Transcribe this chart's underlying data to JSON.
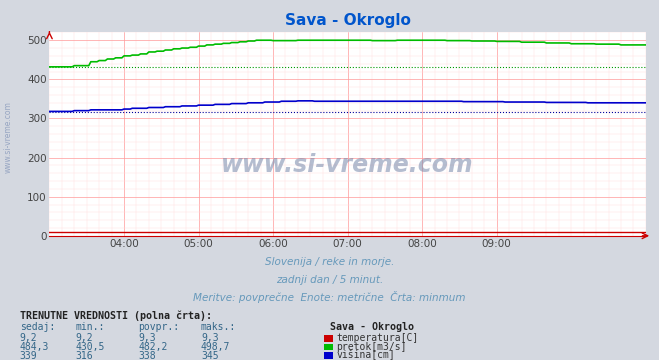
{
  "title": "Sava - Okroglo",
  "title_color": "#0055cc",
  "fig_bg_color": "#d4d8e0",
  "plot_bg_color": "#ffffff",
  "grid_major_color": "#ff9999",
  "grid_minor_color": "#ffdddd",
  "xlim": [
    0,
    288
  ],
  "ylim": [
    0,
    520
  ],
  "yticks": [
    0,
    100,
    200,
    300,
    400,
    500
  ],
  "xtick_labels": [
    "04:00",
    "05:00",
    "06:00",
    "07:00",
    "08:00",
    "09:00"
  ],
  "xtick_positions": [
    36,
    72,
    108,
    144,
    180,
    216
  ],
  "watermark": "www.si-vreme.com",
  "subtitle1": "Slovenija / reke in morje.",
  "subtitle2": "zadnji dan / 5 minut.",
  "subtitle3": "Meritve: povprečne  Enote: metrične  Črta: minmum",
  "subtitle_color": "#6699bb",
  "legend_title": "Sava - Okroglo",
  "legend_items": [
    {
      "label": "temperatura[C]",
      "color": "#cc0000"
    },
    {
      "label": "pretok[m3/s]",
      "color": "#00bb00"
    },
    {
      "label": "višina[cm]",
      "color": "#0000cc"
    }
  ],
  "table_header": "TRENUTNE VREDNOSTI (polna črta):",
  "table_cols": [
    "sedaj:",
    "min.:",
    "povpr.:",
    "maks.:"
  ],
  "table_rows": [
    [
      "9,2",
      "9,2",
      "9,3",
      "9,3"
    ],
    [
      "484,3",
      "430,5",
      "482,2",
      "498,7"
    ],
    [
      "339",
      "316",
      "338",
      "345"
    ]
  ],
  "temp_color": "#cc0000",
  "flow_color": "#00bb00",
  "height_color": "#0000cc",
  "flow_min_color": "#009900",
  "height_min_color": "#000099",
  "axis_arrow_color": "#cc0000"
}
